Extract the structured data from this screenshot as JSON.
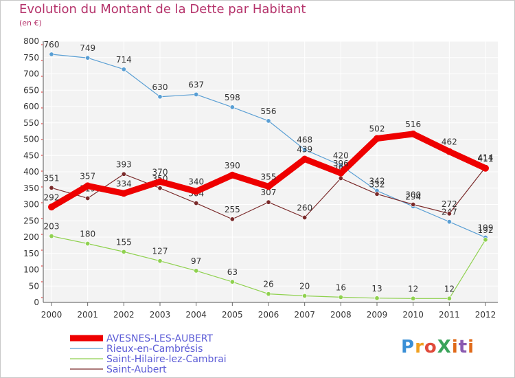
{
  "title": "Evolution du Montant de la Dette par Habitant",
  "subtitle": "(en €)",
  "logo_text": "ProXiti",
  "chart_data": {
    "type": "line",
    "title": "Evolution du Montant de la Dette par Habitant",
    "ylabel": "(en €)",
    "xlabel": "",
    "x": [
      "2000",
      "2001",
      "2002",
      "2003",
      "2004",
      "2005",
      "2006",
      "2007",
      "2008",
      "2009",
      "2010",
      "2011",
      "2012"
    ],
    "ylim": [
      0,
      800
    ],
    "yticks": [
      0,
      50,
      100,
      150,
      200,
      250,
      300,
      350,
      400,
      450,
      500,
      550,
      600,
      650,
      700,
      750,
      800
    ],
    "grid": true,
    "legend": "bottom-left",
    "series": [
      {
        "name": "AVESNES-LES-AUBERT",
        "color": "#ee0000",
        "values": [
          292,
          357,
          334,
          370,
          340,
          390,
          355,
          439,
          396,
          502,
          516,
          462,
          411
        ]
      },
      {
        "name": "Rieux-en-Cambrésis",
        "color": "#5a9fd4",
        "values": [
          760,
          749,
          714,
          630,
          637,
          598,
          556,
          468,
          420,
          342,
          294,
          247,
          199
        ]
      },
      {
        "name": "Saint-Hilaire-lez-Cambrai",
        "color": "#8fd14f",
        "values": [
          203,
          180,
          155,
          127,
          97,
          63,
          26,
          20,
          16,
          13,
          12,
          12,
          192
        ]
      },
      {
        "name": "Saint-Aubert",
        "color": "#7a2a2a",
        "values": [
          351,
          319,
          393,
          350,
          304,
          255,
          307,
          260,
          380,
          332,
          300,
          272,
          414
        ]
      }
    ]
  }
}
